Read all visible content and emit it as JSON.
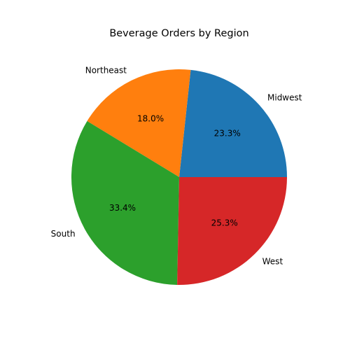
{
  "chart_data": {
    "type": "pie",
    "title": "Beverage Orders by Region",
    "categories": [
      "Midwest",
      "Northeast",
      "South",
      "West"
    ],
    "values": [
      23.3,
      18.0,
      33.4,
      25.3
    ],
    "percent_labels": [
      "23.3%",
      "18.0%",
      "33.4%",
      "25.3%"
    ],
    "colors": [
      "#1f77b4",
      "#ff7f0e",
      "#2ca02c",
      "#d62728"
    ],
    "start_angle_deg": 0,
    "direction": "counterclockwise",
    "legend": "none"
  }
}
